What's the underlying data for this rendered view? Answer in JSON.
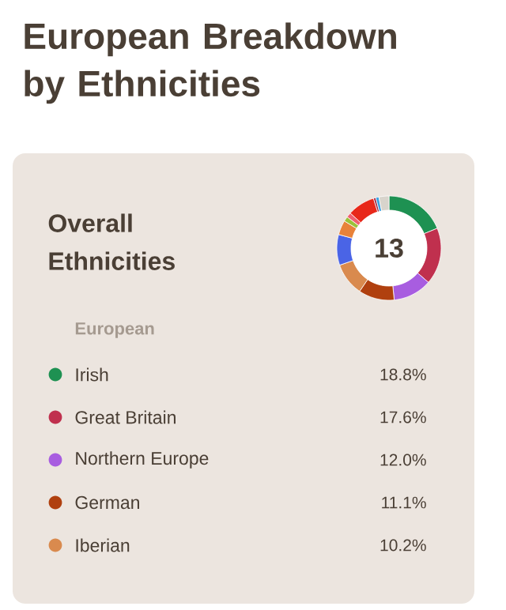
{
  "chart_data": {
    "type": "donut",
    "title": "European Breakdown by Ethnicities",
    "subtitle": "Overall Ethnicities",
    "legend_title": "European",
    "annotations": [
      "13"
    ],
    "legend": "bottom",
    "categories": [
      "Irish",
      "Great Britain",
      "Northern Europe",
      "German",
      "Iberian",
      null,
      null,
      null,
      null,
      null,
      null,
      null,
      null
    ],
    "values": [
      18.8,
      17.6,
      12.0,
      11.1,
      10.2,
      9.5,
      4.5,
      1.5,
      1.5,
      8.5,
      0.7,
      1.0,
      3.1
    ],
    "value_labels": [
      "18.8%",
      "17.6%",
      "12.0%",
      "11.1%",
      "10.2%",
      null,
      null,
      null,
      null,
      null,
      null,
      null,
      null
    ],
    "colors": [
      "#1e9152",
      "#c0304e",
      "#a85de0",
      "#b0400f",
      "#d98a4e",
      "#4a64e6",
      "#e8823a",
      "#9bc23a",
      "#f06070",
      "#e8281a",
      "#a0203a",
      "#3aa0e0",
      "#d8d4cc"
    ]
  }
}
